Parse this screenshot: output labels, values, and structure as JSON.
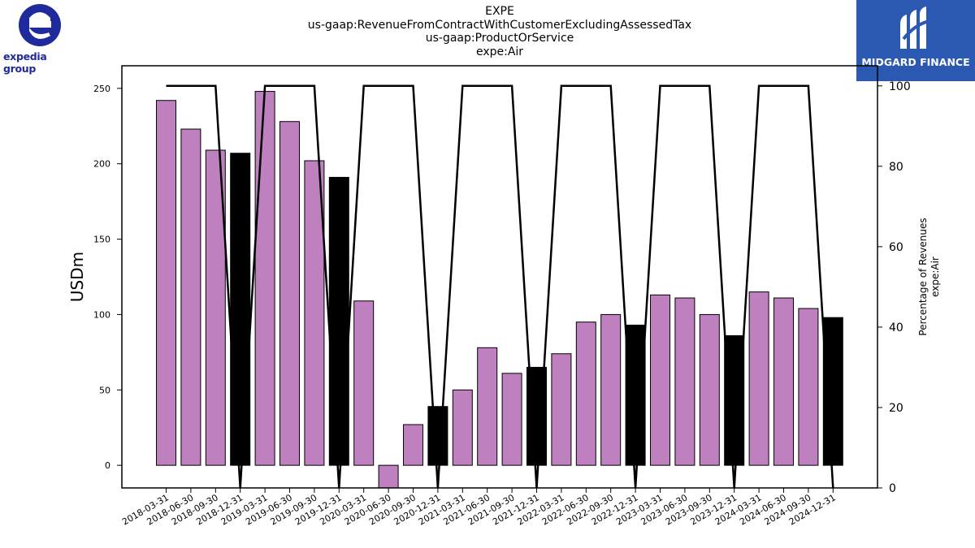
{
  "header": {
    "title_lines": [
      "EXPE",
      "us-gaap:RevenueFromContractWithCustomerExcludingAssessedTax",
      "us-gaap:ProductOrService",
      "expe:Air"
    ]
  },
  "logos": {
    "left_text": "expedia group",
    "right_text": "MIDGARD FINANCE"
  },
  "colors": {
    "bar_quarter": "#bf80bf",
    "bar_annual": "#000000",
    "line": "#000000",
    "logo_left": "#1f2a9c",
    "logo_right_bg": "#2b58b0"
  },
  "chart_data": {
    "type": "bar",
    "categories": [
      "2018-03-31",
      "2018-06-30",
      "2018-09-30",
      "2018-12-31",
      "2019-03-31",
      "2019-06-30",
      "2019-09-30",
      "2019-12-31",
      "2020-03-31",
      "2020-06-30",
      "2020-09-30",
      "2020-12-31",
      "2021-03-31",
      "2021-06-30",
      "2021-09-30",
      "2021-12-31",
      "2022-03-31",
      "2022-06-30",
      "2022-09-30",
      "2022-12-31",
      "2023-03-31",
      "2023-06-30",
      "2023-09-30",
      "2023-12-31",
      "2024-03-31",
      "2024-06-30",
      "2024-09-30",
      "2024-12-31"
    ],
    "series": [
      {
        "axis": "left",
        "kind": "bar",
        "values": [
          242,
          223,
          209,
          207,
          248,
          228,
          202,
          191,
          109,
          -15,
          27,
          39,
          50,
          78,
          61,
          65,
          74,
          95,
          100,
          93,
          113,
          111,
          100,
          86,
          115,
          111,
          104,
          98
        ],
        "highlight_indices": [
          3,
          7,
          11,
          15,
          19,
          23,
          27
        ]
      },
      {
        "axis": "right",
        "kind": "line",
        "values": [
          100,
          100,
          100,
          0,
          100,
          100,
          100,
          0,
          100,
          100,
          100,
          0,
          100,
          100,
          100,
          0,
          100,
          100,
          100,
          0,
          100,
          100,
          100,
          0,
          100,
          100,
          100,
          0
        ]
      }
    ],
    "ylabel": "USDm",
    "ylim": [
      -15,
      265
    ],
    "y_ticks": [
      0,
      50,
      100,
      150,
      200,
      250
    ],
    "y2label_lines": [
      "Percentage of Revenues",
      "expe:Air"
    ],
    "y2lim": [
      0,
      105
    ],
    "y2_ticks": [
      0,
      20,
      40,
      60,
      80,
      100
    ],
    "grid": false,
    "legend": "none"
  }
}
